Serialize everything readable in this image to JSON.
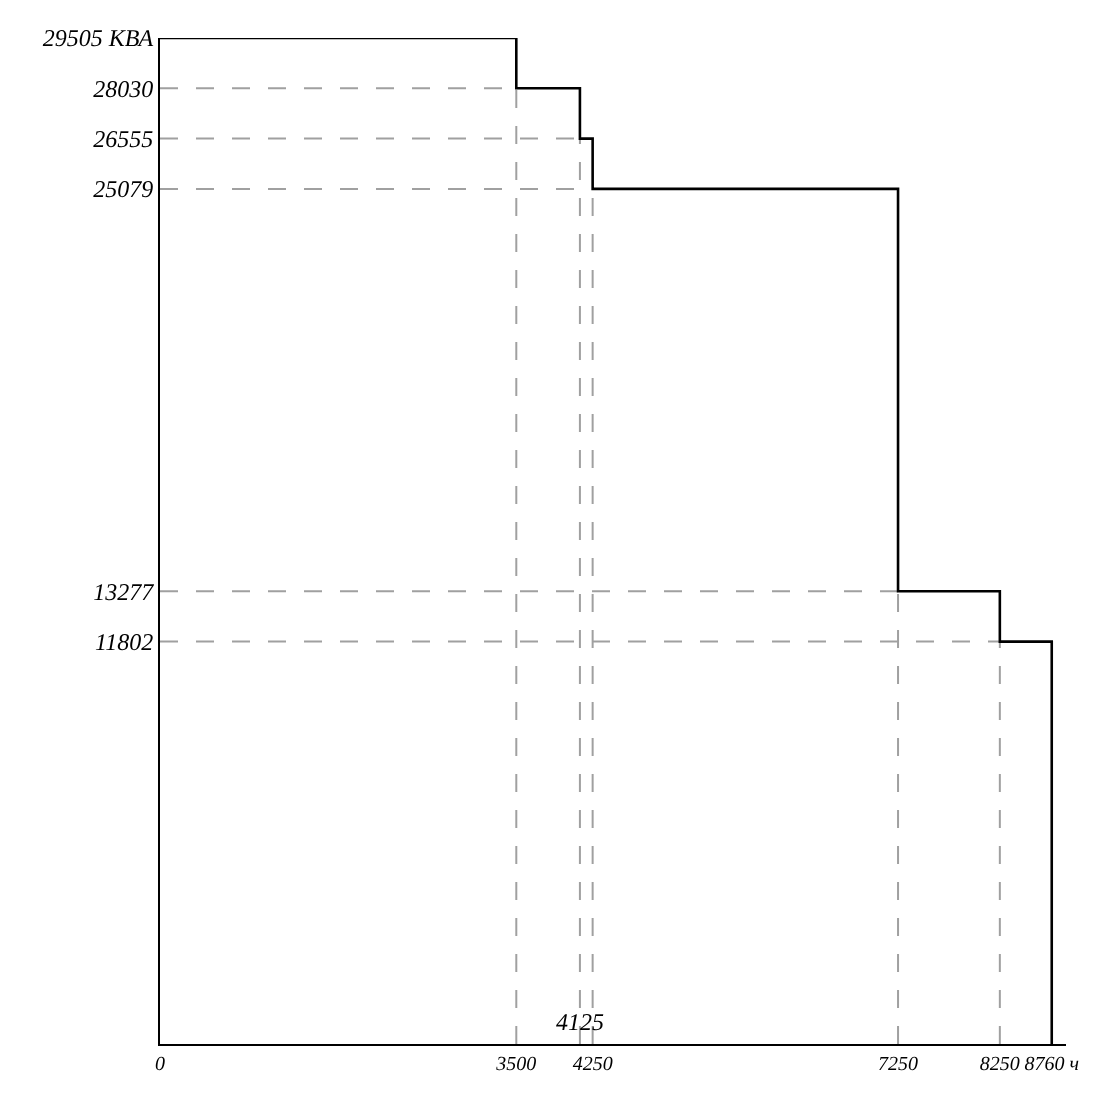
{
  "chart_data": {
    "type": "step",
    "x": [
      0,
      3500,
      4125,
      4250,
      7250,
      8250,
      8760,
      8760
    ],
    "series": [
      {
        "color": "#000000",
        "values": [
          29505,
          28030,
          26555,
          25079,
          13277,
          11802,
          11802,
          0
        ]
      }
    ],
    "xlim": [
      0,
      8900
    ],
    "ylim": [
      0,
      29505
    ],
    "xticks": [
      0,
      3500,
      4250,
      7250,
      8250,
      {
        "value": 8760,
        "label": "8760 ч"
      }
    ],
    "yticks": [
      11802,
      13277,
      25079,
      26555,
      28030,
      {
        "value": 29505,
        "label": "29505 КВА"
      }
    ],
    "annotations": [
      {
        "text": "4125",
        "x": 4125,
        "y": 0
      }
    ],
    "ref_lines": [
      {
        "axis": "y",
        "value": 28030,
        "color": "#a0a0a0",
        "line_style": "dashed"
      },
      {
        "axis": "y",
        "value": 26555,
        "color": "#a0a0a0",
        "line_style": "dashed"
      },
      {
        "axis": "y",
        "value": 25079,
        "color": "#a0a0a0",
        "line_style": "dashed"
      },
      {
        "axis": "y",
        "value": 13277,
        "color": "#a0a0a0",
        "line_style": "dashed"
      },
      {
        "axis": "y",
        "value": 11802,
        "color": "#a0a0a0",
        "line_style": "dashed"
      },
      {
        "axis": "x",
        "value": 3500,
        "color": "#a0a0a0",
        "line_style": "dashed"
      },
      {
        "axis": "x",
        "value": 4125,
        "color": "#a0a0a0",
        "line_style": "dashed"
      },
      {
        "axis": "x",
        "value": 4250,
        "color": "#a0a0a0",
        "line_style": "dashed"
      },
      {
        "axis": "x",
        "value": 7250,
        "color": "#a0a0a0",
        "line_style": "dashed"
      },
      {
        "axis": "x",
        "value": 8250,
        "color": "#a0a0a0",
        "line_style": "dashed"
      }
    ],
    "grid": false,
    "marker": "none",
    "line_style": "solid"
  }
}
